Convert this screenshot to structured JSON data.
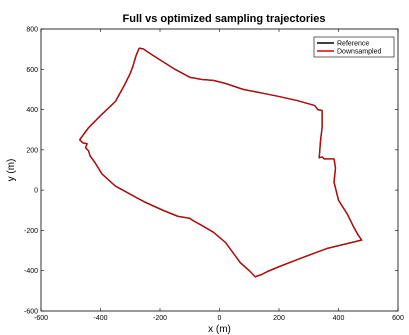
{
  "chart_data": {
    "type": "line",
    "title": "Full vs optimized sampling trajectories",
    "xlabel": "x (m)",
    "ylabel": "y (m)",
    "xlim": [
      -600,
      600
    ],
    "ylim": [
      -600,
      800
    ],
    "xticks": [
      -600,
      -400,
      -200,
      0,
      200,
      400,
      600
    ],
    "yticks": [
      -600,
      -400,
      -200,
      0,
      200,
      400,
      600,
      800
    ],
    "grid": false,
    "legend_position": "top-right",
    "series": [
      {
        "name": "Reference",
        "color": "#000000",
        "points": [
          [
            -270,
            705
          ],
          [
            -255,
            700
          ],
          [
            -245,
            690
          ],
          [
            -225,
            670
          ],
          [
            -150,
            600
          ],
          [
            -100,
            560
          ],
          [
            -60,
            550
          ],
          [
            -20,
            545
          ],
          [
            20,
            530
          ],
          [
            80,
            500
          ],
          [
            150,
            480
          ],
          [
            200,
            465
          ],
          [
            260,
            445
          ],
          [
            320,
            420
          ],
          [
            330,
            400
          ],
          [
            345,
            395
          ],
          [
            345,
            310
          ],
          [
            340,
            250
          ],
          [
            335,
            160
          ],
          [
            345,
            165
          ],
          [
            352,
            155
          ],
          [
            385,
            155
          ],
          [
            390,
            110
          ],
          [
            385,
            40
          ],
          [
            400,
            -50
          ],
          [
            430,
            -120
          ],
          [
            450,
            -180
          ],
          [
            465,
            -220
          ],
          [
            478,
            -248
          ],
          [
            360,
            -290
          ],
          [
            270,
            -340
          ],
          [
            200,
            -380
          ],
          [
            160,
            -405
          ],
          [
            140,
            -420
          ],
          [
            120,
            -430
          ],
          [
            100,
            -400
          ],
          [
            70,
            -360
          ],
          [
            50,
            -320
          ],
          [
            20,
            -260
          ],
          [
            -20,
            -210
          ],
          [
            -60,
            -175
          ],
          [
            -90,
            -150
          ],
          [
            -100,
            -140
          ],
          [
            -120,
            -135
          ],
          [
            -140,
            -130
          ],
          [
            -190,
            -100
          ],
          [
            -250,
            -60
          ],
          [
            -300,
            -20
          ],
          [
            -350,
            20
          ],
          [
            -395,
            80
          ],
          [
            -420,
            140
          ],
          [
            -435,
            170
          ],
          [
            -440,
            195
          ],
          [
            -450,
            210
          ],
          [
            -445,
            230
          ],
          [
            -460,
            235
          ],
          [
            -470,
            250
          ],
          [
            -455,
            280
          ],
          [
            -440,
            310
          ],
          [
            -400,
            370
          ],
          [
            -350,
            440
          ],
          [
            -320,
            520
          ],
          [
            -300,
            580
          ],
          [
            -290,
            620
          ],
          [
            -280,
            670
          ],
          [
            -270,
            705
          ]
        ]
      },
      {
        "name": "Downsampled",
        "color": "#dd0000",
        "points": [
          [
            -270,
            705
          ],
          [
            -255,
            700
          ],
          [
            -245,
            690
          ],
          [
            -225,
            670
          ],
          [
            -150,
            600
          ],
          [
            -100,
            560
          ],
          [
            -60,
            550
          ],
          [
            -20,
            545
          ],
          [
            20,
            530
          ],
          [
            80,
            500
          ],
          [
            150,
            480
          ],
          [
            200,
            465
          ],
          [
            260,
            445
          ],
          [
            320,
            420
          ],
          [
            330,
            400
          ],
          [
            345,
            395
          ],
          [
            345,
            310
          ],
          [
            340,
            250
          ],
          [
            335,
            160
          ],
          [
            345,
            165
          ],
          [
            352,
            155
          ],
          [
            385,
            155
          ],
          [
            390,
            110
          ],
          [
            385,
            40
          ],
          [
            400,
            -50
          ],
          [
            430,
            -120
          ],
          [
            450,
            -180
          ],
          [
            465,
            -220
          ],
          [
            478,
            -248
          ],
          [
            360,
            -290
          ],
          [
            270,
            -340
          ],
          [
            200,
            -380
          ],
          [
            160,
            -405
          ],
          [
            140,
            -420
          ],
          [
            120,
            -430
          ],
          [
            100,
            -400
          ],
          [
            70,
            -360
          ],
          [
            50,
            -320
          ],
          [
            20,
            -260
          ],
          [
            -20,
            -210
          ],
          [
            -60,
            -175
          ],
          [
            -90,
            -150
          ],
          [
            -100,
            -140
          ],
          [
            -120,
            -135
          ],
          [
            -140,
            -130
          ],
          [
            -190,
            -100
          ],
          [
            -250,
            -60
          ],
          [
            -300,
            -20
          ],
          [
            -350,
            20
          ],
          [
            -395,
            80
          ],
          [
            -420,
            140
          ],
          [
            -435,
            170
          ],
          [
            -440,
            195
          ],
          [
            -450,
            210
          ],
          [
            -445,
            230
          ],
          [
            -460,
            235
          ],
          [
            -470,
            250
          ],
          [
            -455,
            280
          ],
          [
            -440,
            310
          ],
          [
            -400,
            370
          ],
          [
            -350,
            440
          ],
          [
            -320,
            520
          ],
          [
            -300,
            580
          ],
          [
            -290,
            620
          ],
          [
            -280,
            670
          ],
          [
            -270,
            705
          ]
        ]
      }
    ]
  }
}
